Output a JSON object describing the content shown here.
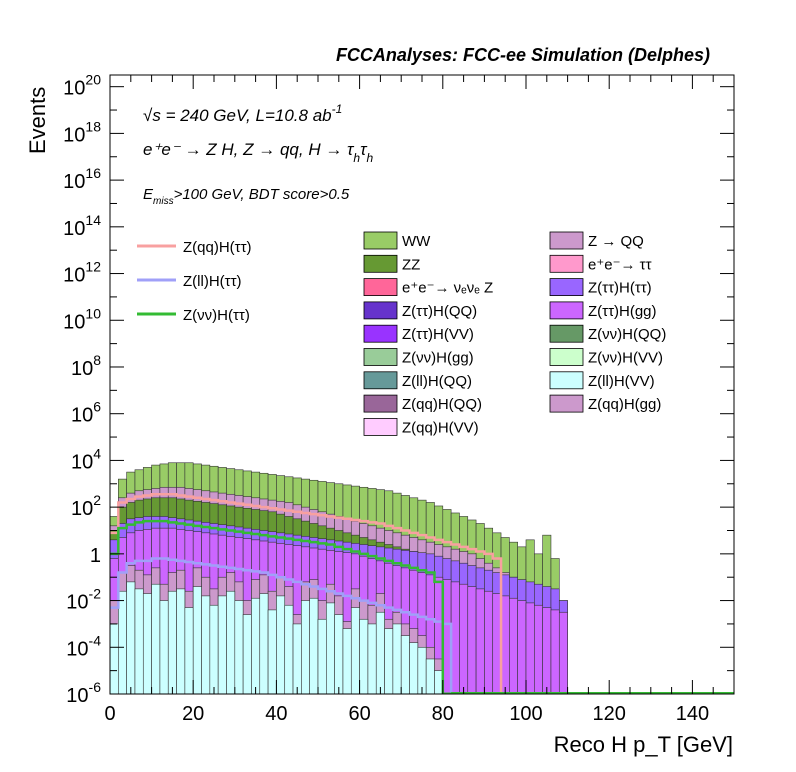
{
  "chart_data": {
    "type": "area",
    "title": "FCCAnalyses: FCC-ee Simulation (Delphes)",
    "xlabel": "Reco H p_T [GeV]",
    "ylabel": "Events",
    "xlim": [
      0,
      150
    ],
    "ylim_log10": [
      -6,
      20.5
    ],
    "log_y": true,
    "grid": false,
    "legend_placement": "upper-right (3 columns)",
    "bin_width": 2,
    "x_ticks": [
      "0",
      "20",
      "40",
      "60",
      "80",
      "100",
      "120",
      "140"
    ],
    "y_ticks": [
      {
        "base": "10",
        "exp": "20",
        "pow": 20
      },
      {
        "base": "10",
        "exp": "18",
        "pow": 18
      },
      {
        "base": "10",
        "exp": "16",
        "pow": 16
      },
      {
        "base": "10",
        "exp": "14",
        "pow": 14
      },
      {
        "base": "10",
        "exp": "12",
        "pow": 12
      },
      {
        "base": "10",
        "exp": "10",
        "pow": 10
      },
      {
        "base": "10",
        "exp": "8",
        "pow": 8
      },
      {
        "base": "10",
        "exp": "6",
        "pow": 6
      },
      {
        "base": "10",
        "exp": "4",
        "pow": 4
      },
      {
        "base": "10",
        "exp": "2",
        "pow": 2
      },
      {
        "base": "1",
        "exp": "",
        "pow": 0
      },
      {
        "base": "10",
        "exp": "-2",
        "pow": -2
      },
      {
        "base": "10",
        "exp": "-4",
        "pow": -4
      },
      {
        "base": "10",
        "exp": "-6",
        "pow": -6
      }
    ],
    "annotations": {
      "line1_sqrt": "√s",
      "line1_rest": " = 240 GeV, L=10.8 ab",
      "line1_sup": "-1",
      "line2_process": "e⁺e⁻ → Z H, Z → qq, H → τ",
      "line2_sub1": "h",
      "line2_tau2": "τ",
      "line2_sub2": "h",
      "line3_E": "E",
      "line3_sub": "miss",
      "line3_rest": ">100 GeV, BDT score>0.5"
    },
    "stack_envelopes_log10": {
      "x_edges_from": 0,
      "WW_total": [
        1.6,
        3.2,
        3.5,
        3.6,
        3.7,
        3.8,
        3.85,
        3.9,
        3.9,
        3.9,
        3.85,
        3.8,
        3.75,
        3.7,
        3.65,
        3.6,
        3.55,
        3.5,
        3.45,
        3.4,
        3.35,
        3.3,
        3.25,
        3.2,
        3.15,
        3.1,
        3.05,
        3.0,
        2.95,
        2.9,
        2.85,
        2.8,
        2.75,
        2.7,
        2.6,
        2.5,
        2.4,
        2.3,
        2.2,
        2.05,
        1.9,
        1.75,
        1.6,
        1.45,
        1.3,
        1.1,
        0.9,
        0.7,
        0.5,
        0.3,
        0.6,
        0.0,
        0.8,
        -0.2,
        -2.0
      ],
      "Zqq_Hgg_top": [
        1.2,
        2.4,
        2.6,
        2.7,
        2.75,
        2.8,
        2.85,
        2.85,
        2.85,
        2.8,
        2.75,
        2.7,
        2.65,
        2.6,
        2.55,
        2.5,
        2.45,
        2.4,
        2.35,
        2.3,
        2.25,
        2.2,
        2.1,
        2.0,
        1.9,
        1.8,
        1.7,
        1.6,
        1.5,
        1.4,
        1.3,
        1.2,
        1.1,
        1.0,
        0.9,
        0.8,
        0.7,
        0.6,
        0.5,
        0.4,
        0.3,
        0.2,
        0.1,
        0.0,
        -0.2,
        -0.4,
        -0.6,
        -0.8,
        -1.0,
        -1.2,
        -1.4,
        -1.6,
        -1.8,
        -2.0,
        -2.5
      ],
      "ZZ_top": [
        1.0,
        2.0,
        2.2,
        2.3,
        2.35,
        2.4,
        2.4,
        2.4,
        2.35,
        2.3,
        2.25,
        2.2,
        2.15,
        2.1,
        2.05,
        2.0,
        1.95,
        1.9,
        1.85,
        1.8,
        1.7,
        1.6,
        1.5,
        1.4,
        1.3,
        1.2,
        1.1,
        1.0,
        0.9,
        0.8,
        0.7,
        0.6,
        0.5,
        0.4,
        0.3,
        0.2,
        0.1,
        0.0,
        -0.1,
        -0.2,
        -0.4,
        -0.6,
        -0.8,
        -1.0,
        -1.2,
        -1.4,
        -1.6,
        -1.8,
        -2.0,
        -2.2,
        -2.4,
        -2.6,
        -2.8,
        -3.0,
        -3.5
      ],
      "Zvv_Hgg_top": [
        0.6,
        1.3,
        1.5,
        1.55,
        1.6,
        1.6,
        1.6,
        1.55,
        1.5,
        1.45,
        1.4,
        1.35,
        1.3,
        1.25,
        1.2,
        1.15,
        1.1,
        1.05,
        1.0,
        0.95,
        0.9,
        0.85,
        0.8,
        0.75,
        0.7,
        0.65,
        0.6,
        0.55,
        0.5,
        0.45,
        0.4,
        0.35,
        0.3,
        0.25,
        0.2,
        0.15,
        0.1,
        0.05,
        0.0,
        -0.1,
        -0.2,
        -0.3,
        -0.4,
        -0.5,
        -0.6,
        -0.7,
        -0.8,
        -0.9,
        -1.0,
        -1.1,
        -1.2,
        -1.3,
        -1.4,
        -1.5,
        -2.0
      ],
      "Ztautau_HVV_top": [
        -0.2,
        0.7,
        0.9,
        1.0,
        1.05,
        1.1,
        1.1,
        1.1,
        1.05,
        1.0,
        0.95,
        0.9,
        0.85,
        0.8,
        0.75,
        0.7,
        0.65,
        0.6,
        0.55,
        0.5,
        0.45,
        0.4,
        0.35,
        0.3,
        0.25,
        0.2,
        0.15,
        0.1,
        0.05,
        0.0,
        -0.1,
        -0.2,
        -0.3,
        -0.4,
        -0.5,
        -0.6,
        -0.7,
        -0.8,
        -0.9,
        -1.0,
        -1.1,
        -1.2,
        -1.3,
        -1.4,
        -1.5,
        -1.6,
        -1.7,
        -1.8,
        -1.9,
        -2.0,
        -2.1,
        -2.2,
        -2.3,
        -2.4,
        -2.5
      ],
      "ZllHQQ_top": [
        -2.0,
        -0.8,
        -0.5,
        -0.7,
        -0.9,
        -0.6,
        -1.3,
        -0.8,
        -0.7,
        -1.6,
        -0.6,
        -1.0,
        -1.5,
        -1.0,
        -0.8,
        -1.2,
        -2.0,
        -1.1,
        -0.9,
        -1.6,
        -1.0,
        -1.4,
        -2.6,
        -1.2,
        -1.1,
        -2.0,
        -1.3,
        -1.8,
        -2.9,
        -1.5,
        -2.0,
        -2.2,
        -1.7,
        -2.8,
        -2.5,
        -3.0,
        -3.2,
        -3.5,
        -4.0,
        -4.5,
        -6.5,
        -6.5,
        -6.5,
        -6.5,
        -6.5,
        -6.5,
        -6.5,
        -6.5,
        -6.5,
        -6.5,
        -6.5,
        -6.5,
        -6.5,
        -6.5,
        -6.5
      ],
      "ZllHVV_top": [
        -3.0,
        -1.6,
        -1.2,
        -1.5,
        -1.7,
        -1.3,
        -2.0,
        -1.6,
        -1.5,
        -2.3,
        -1.4,
        -1.8,
        -2.2,
        -1.8,
        -1.6,
        -2.0,
        -2.6,
        -1.9,
        -1.7,
        -2.4,
        -1.8,
        -2.2,
        -3.0,
        -2.0,
        -1.9,
        -2.8,
        -2.1,
        -2.6,
        -3.2,
        -2.3,
        -2.8,
        -3.0,
        -2.5,
        -3.2,
        -3.0,
        -3.5,
        -3.8,
        -4.0,
        -4.5,
        -5.0,
        -6.5,
        -6.5,
        -6.5,
        -6.5,
        -6.5,
        -6.5,
        -6.5,
        -6.5,
        -6.5,
        -6.5,
        -6.5,
        -6.5,
        -6.5,
        -6.5,
        -6.5
      ]
    },
    "series": [
      {
        "name": "Z(qq)H(ττ)",
        "kind": "line",
        "color": "#f8a0a0",
        "values_log10": [
          0.9,
          2.2,
          2.35,
          2.45,
          2.5,
          2.55,
          2.55,
          2.55,
          2.5,
          2.45,
          2.4,
          2.35,
          2.3,
          2.25,
          2.2,
          2.15,
          2.1,
          2.05,
          2.0,
          1.95,
          1.9,
          1.85,
          1.8,
          1.75,
          1.7,
          1.65,
          1.6,
          1.55,
          1.5,
          1.45,
          1.4,
          1.35,
          1.3,
          1.2,
          1.1,
          1.0,
          0.9,
          0.8,
          0.7,
          0.6,
          0.5,
          0.4,
          0.3,
          0.2,
          0.1,
          0.0,
          -0.2,
          -6.5,
          -6.5,
          -6.5,
          -6.5,
          -6.5,
          -6.5,
          -6.5,
          -6.5
        ]
      },
      {
        "name": "Z(ll)H(ττ)",
        "kind": "line",
        "color": "#a0a0f8",
        "values_log10": [
          -2.3,
          -0.8,
          -0.4,
          -0.3,
          -0.3,
          -0.2,
          -0.2,
          -0.25,
          -0.3,
          -0.35,
          -0.4,
          -0.45,
          -0.5,
          -0.55,
          -0.6,
          -0.65,
          -0.7,
          -0.75,
          -0.8,
          -0.9,
          -1.0,
          -1.1,
          -1.2,
          -1.3,
          -1.4,
          -1.5,
          -1.6,
          -1.7,
          -1.8,
          -1.9,
          -2.0,
          -2.1,
          -2.2,
          -2.3,
          -2.4,
          -2.5,
          -2.6,
          -2.7,
          -2.8,
          -2.9,
          -3.0,
          -6.5,
          -6.5,
          -6.5,
          -6.5,
          -6.5,
          -6.5,
          -6.5,
          -6.5,
          -6.5,
          -6.5,
          -6.5,
          -6.5,
          -6.5,
          -6.5
        ]
      },
      {
        "name": "Z(νν)H(ττ)",
        "kind": "line",
        "color": "#33bb33",
        "values_log10": [
          0.0,
          1.1,
          1.25,
          1.35,
          1.4,
          1.4,
          1.4,
          1.35,
          1.3,
          1.25,
          1.2,
          1.15,
          1.1,
          1.05,
          1.0,
          0.95,
          0.9,
          0.85,
          0.8,
          0.75,
          0.7,
          0.65,
          0.6,
          0.55,
          0.5,
          0.45,
          0.4,
          0.3,
          0.2,
          0.1,
          0.0,
          -0.1,
          -0.2,
          -0.3,
          -0.4,
          -0.5,
          -0.6,
          -0.7,
          -0.8,
          -1.2,
          -6.5,
          -6.5,
          -6.5,
          -6.5,
          -6.5,
          -6.5,
          -6.5,
          -6.5,
          -6.5,
          -6.5,
          -6.5,
          -6.5,
          -6.5,
          -6.5,
          -6.5
        ]
      }
    ],
    "legend_lines": [
      {
        "label": "Z(qq)H(ττ)",
        "color": "#f8a0a0"
      },
      {
        "label": "Z(ll)H(ττ)",
        "color": "#a0a0f8"
      },
      {
        "label": "Z(νν)H(ττ)",
        "color": "#33bb33"
      }
    ],
    "legend_fills": [
      {
        "label": "WW",
        "color": "#99cc66"
      },
      {
        "label": "Z → QQ",
        "color": "#cc99cc"
      },
      {
        "label": "ZZ",
        "color": "#669933"
      },
      {
        "label": "e⁺e⁻→ ττ",
        "color": "#ff99cc"
      },
      {
        "label": "e⁺e⁻→ νₑνₑ Z",
        "color": "#ff6699"
      },
      {
        "label": "Z(ττ)H(ττ)",
        "color": "#9966ff"
      },
      {
        "label": "Z(ττ)H(QQ)",
        "color": "#6633cc"
      },
      {
        "label": "Z(ττ)H(gg)",
        "color": "#cc66ff"
      },
      {
        "label": "Z(ττ)H(VV)",
        "color": "#9933ff"
      },
      {
        "label": "Z(νν)H(QQ)",
        "color": "#669966"
      },
      {
        "label": "Z(νν)H(gg)",
        "color": "#99cc99"
      },
      {
        "label": "Z(νν)H(VV)",
        "color": "#ccffcc"
      },
      {
        "label": "Z(ll)H(QQ)",
        "color": "#669999"
      },
      {
        "label": "Z(ll)H(VV)",
        "color": "#ccffff"
      },
      {
        "label": "Z(qq)H(QQ)",
        "color": "#996699"
      },
      {
        "label": "Z(qq)H(gg)",
        "color": "#cc99cc"
      },
      {
        "label": "Z(qq)H(VV)",
        "color": "#ffccff"
      }
    ]
  }
}
